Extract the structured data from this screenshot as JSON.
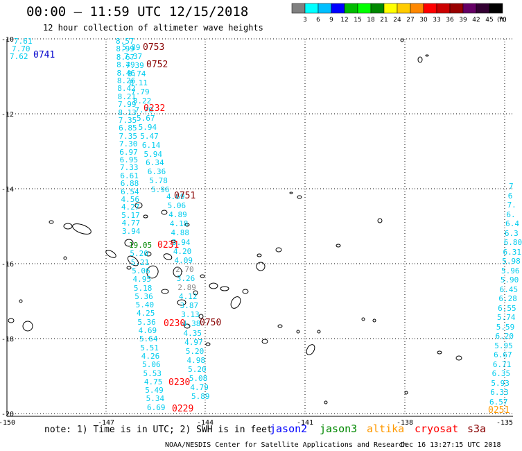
{
  "header": {
    "title": "00:00 – 11:59 UTC 12/15/2018",
    "subtitle": "12 hour collection of altimeter wave heights"
  },
  "legend": {
    "ticks": [
      "3",
      "6",
      "9",
      "12",
      "15",
      "18",
      "21",
      "24",
      "27",
      "30",
      "33",
      "36",
      "39",
      "42",
      "45",
      "70"
    ],
    "unit": "(ft)",
    "colors": [
      "#808080",
      "#00ffff",
      "#00bfff",
      "#0000ff",
      "#00bb00",
      "#00ff00",
      "#008800",
      "#ffff00",
      "#ffcc00",
      "#ff8800",
      "#ff0000",
      "#cc0000",
      "#990000",
      "#660066",
      "#330033",
      "#000000"
    ]
  },
  "axes": {
    "x_ticks": [
      "-150",
      "-147",
      "-144",
      "-141",
      "-138",
      "-135"
    ],
    "y_ticks": [
      "-10",
      "-12",
      "-14",
      "-16",
      "-18",
      "-20"
    ]
  },
  "tracks": [
    {
      "labels": [
        {
          "text": "7.61",
          "color": "#00ccee"
        },
        {
          "text": "7.70",
          "color": "#00ccee"
        },
        {
          "text": "7.62",
          "color": "#00ccee"
        }
      ]
    },
    {
      "labels": [
        {
          "text": "8.57",
          "color": "#00ccee"
        },
        {
          "text": "8.99",
          "color": "#00ccee"
        },
        {
          "text": "8.67",
          "color": "#00ccee"
        },
        {
          "text": "8.49",
          "color": "#00ccee"
        },
        {
          "text": "8.46",
          "color": "#00ccee"
        },
        {
          "text": "8.26",
          "color": "#00ccee"
        },
        {
          "text": "8.42",
          "color": "#00ccee"
        },
        {
          "text": "8.21",
          "color": "#00ccee"
        },
        {
          "text": "7.99",
          "color": "#00ccee"
        },
        {
          "text": "8.13",
          "color": "#00ccee"
        },
        {
          "text": "7.35",
          "color": "#00ccee"
        },
        {
          "text": "6.85",
          "color": "#00ccee"
        },
        {
          "text": "7.35",
          "color": "#00ccee"
        },
        {
          "text": "7.30",
          "color": "#00ccee"
        },
        {
          "text": "6.97",
          "color": "#00ccee"
        },
        {
          "text": "6.95",
          "color": "#00ccee"
        },
        {
          "text": "7.33",
          "color": "#00ccee"
        },
        {
          "text": "6.61",
          "color": "#00ccee"
        },
        {
          "text": "6.88",
          "color": "#00ccee"
        },
        {
          "text": "6.54",
          "color": "#00ccee"
        },
        {
          "text": "4.56",
          "color": "#00ccee"
        },
        {
          "text": "4.27",
          "color": "#00ccee"
        },
        {
          "text": "5.17",
          "color": "#00ccee"
        },
        {
          "text": "4.77",
          "color": "#00ccee"
        },
        {
          "text": "3.94",
          "color": "#00ccee"
        }
      ]
    },
    {
      "labels": [
        {
          "text": "5.89",
          "color": "#00ccee"
        },
        {
          "text": "7.37",
          "color": "#00ccee"
        },
        {
          "text": "7.39",
          "color": "#00ccee"
        },
        {
          "text": "8.74",
          "color": "#00ccee"
        },
        {
          "text": "8.11",
          "color": "#00ccee"
        },
        {
          "text": "7.79",
          "color": "#00ccee"
        },
        {
          "text": "8.22",
          "color": "#00ccee"
        },
        {
          "text": "7.70",
          "color": "#00ccee"
        },
        {
          "text": "5.67",
          "color": "#00ccee"
        },
        {
          "text": "5.94",
          "color": "#00ccee"
        },
        {
          "text": "5.47",
          "color": "#00ccee"
        },
        {
          "text": "6.14",
          "color": "#00ccee"
        },
        {
          "text": "5.94",
          "color": "#00ccee"
        },
        {
          "text": "6.34",
          "color": "#00ccee"
        },
        {
          "text": "6.36",
          "color": "#00ccee"
        },
        {
          "text": "5.78",
          "color": "#00ccee"
        },
        {
          "text": "5.96",
          "color": "#00ccee"
        }
      ]
    },
    {
      "labels": [
        {
          "text": "4.69",
          "color": "#00ccee"
        },
        {
          "text": "5.06",
          "color": "#00ccee"
        },
        {
          "text": "4.89",
          "color": "#00ccee"
        },
        {
          "text": "4.18",
          "color": "#00ccee"
        },
        {
          "text": "4.88",
          "color": "#00ccee"
        },
        {
          "text": "3.94",
          "color": "#00ccee"
        },
        {
          "text": "4.20",
          "color": "#00ccee"
        },
        {
          "text": "4.09",
          "color": "#00ccee"
        },
        {
          "text": "2.70",
          "color": "#888888"
        },
        {
          "text": "3.26",
          "color": "#00ccee"
        },
        {
          "text": "2.89",
          "color": "#888888"
        },
        {
          "text": "4.12",
          "color": "#00ccee"
        },
        {
          "text": "3.87",
          "color": "#00ccee"
        },
        {
          "text": "3.13",
          "color": "#00ccee"
        },
        {
          "text": "4.38",
          "color": "#00ccee"
        },
        {
          "text": "4.35",
          "color": "#00ccee"
        },
        {
          "text": "4.97",
          "color": "#00ccee"
        },
        {
          "text": "5.20",
          "color": "#00ccee"
        },
        {
          "text": "4.98",
          "color": "#00ccee"
        },
        {
          "text": "5.20",
          "color": "#00ccee"
        },
        {
          "text": "5.08",
          "color": "#00ccee"
        },
        {
          "text": "4.79",
          "color": "#00ccee"
        },
        {
          "text": "5.89",
          "color": "#00ccee"
        }
      ]
    },
    {
      "labels": [
        {
          "text": "19.05",
          "color": "#008800"
        },
        {
          "text": "5.20",
          "color": "#00ccee"
        },
        {
          "text": "5.21",
          "color": "#00ccee"
        },
        {
          "text": "5.06",
          "color": "#00ccee"
        },
        {
          "text": "4.95",
          "color": "#00ccee"
        },
        {
          "text": "5.18",
          "color": "#00ccee"
        },
        {
          "text": "5.36",
          "color": "#00ccee"
        },
        {
          "text": "5.40",
          "color": "#00ccee"
        },
        {
          "text": "4.25",
          "color": "#00ccee"
        },
        {
          "text": "5.36",
          "color": "#00ccee"
        },
        {
          "text": "4.69",
          "color": "#00ccee"
        },
        {
          "text": "5.64",
          "color": "#00ccee"
        },
        {
          "text": "5.51",
          "color": "#00ccee"
        },
        {
          "text": "4.26",
          "color": "#00ccee"
        },
        {
          "text": "5.06",
          "color": "#00ccee"
        },
        {
          "text": "5.53",
          "color": "#00ccee"
        },
        {
          "text": "4.75",
          "color": "#00ccee"
        },
        {
          "text": "5.49",
          "color": "#00ccee"
        },
        {
          "text": "5.34",
          "color": "#00ccee"
        },
        {
          "text": "6.69",
          "color": "#00ccee"
        }
      ]
    },
    {
      "labels": [
        {
          "text": "7",
          "color": "#00ccee"
        },
        {
          "text": "6",
          "color": "#00ccee"
        },
        {
          "text": "7.",
          "color": "#00ccee"
        },
        {
          "text": "6.",
          "color": "#00ccee"
        },
        {
          "text": "6.4",
          "color": "#00ccee"
        },
        {
          "text": "6.3",
          "color": "#00ccee"
        },
        {
          "text": "6.80",
          "color": "#00ccee"
        },
        {
          "text": "6.31",
          "color": "#00ccee"
        },
        {
          "text": "5.98",
          "color": "#00ccee"
        },
        {
          "text": "5.96",
          "color": "#00ccee"
        },
        {
          "text": "5.90",
          "color": "#00ccee"
        },
        {
          "text": "6.45",
          "color": "#00ccee"
        },
        {
          "text": "6.28",
          "color": "#00ccee"
        },
        {
          "text": "6.55",
          "color": "#00ccee"
        },
        {
          "text": "5.74",
          "color": "#00ccee"
        },
        {
          "text": "5.59",
          "color": "#00ccee"
        },
        {
          "text": "6.20",
          "color": "#00ccee"
        },
        {
          "text": "5.95",
          "color": "#00ccee"
        },
        {
          "text": "6.67",
          "color": "#00ccee"
        },
        {
          "text": "6.71",
          "color": "#00ccee"
        },
        {
          "text": "6.35",
          "color": "#00ccee"
        },
        {
          "text": "5.93",
          "color": "#00ccee"
        },
        {
          "text": "6.33",
          "color": "#00ccee"
        },
        {
          "text": "6.57",
          "color": "#00ccee"
        }
      ]
    }
  ],
  "pass_times": [
    {
      "text": "0741",
      "color": "#0000cc"
    },
    {
      "text": "0753",
      "color": "#880000"
    },
    {
      "text": "0752",
      "color": "#880000"
    },
    {
      "text": "0232",
      "color": "#ff0000"
    },
    {
      "text": "0751",
      "color": "#880000"
    },
    {
      "text": "0231",
      "color": "#ff0000"
    },
    {
      "text": "0230",
      "color": "#ff0000"
    },
    {
      "text": "0750",
      "color": "#880000"
    },
    {
      "text": "0230",
      "color": "#ff0000"
    },
    {
      "text": "0229",
      "color": "#ff0000"
    },
    {
      "text": "0251",
      "color": "#ff9900"
    }
  ],
  "footer": {
    "note": "note: 1) Time is in UTC; 2) SWH is in feet",
    "satellites": [
      {
        "name": "jason2",
        "color": "#0000ff"
      },
      {
        "name": "jason3",
        "color": "#008800"
      },
      {
        "name": "altika",
        "color": "#ff9900"
      },
      {
        "name": "cryosat",
        "color": "#ff0000"
      },
      {
        "name": "s3a",
        "color": "#880000"
      }
    ],
    "credit": "NOAA/NESDIS Center for Satellite Applications and Research",
    "timestamp": "Dec 16 13:27:15 UTC 2018"
  }
}
